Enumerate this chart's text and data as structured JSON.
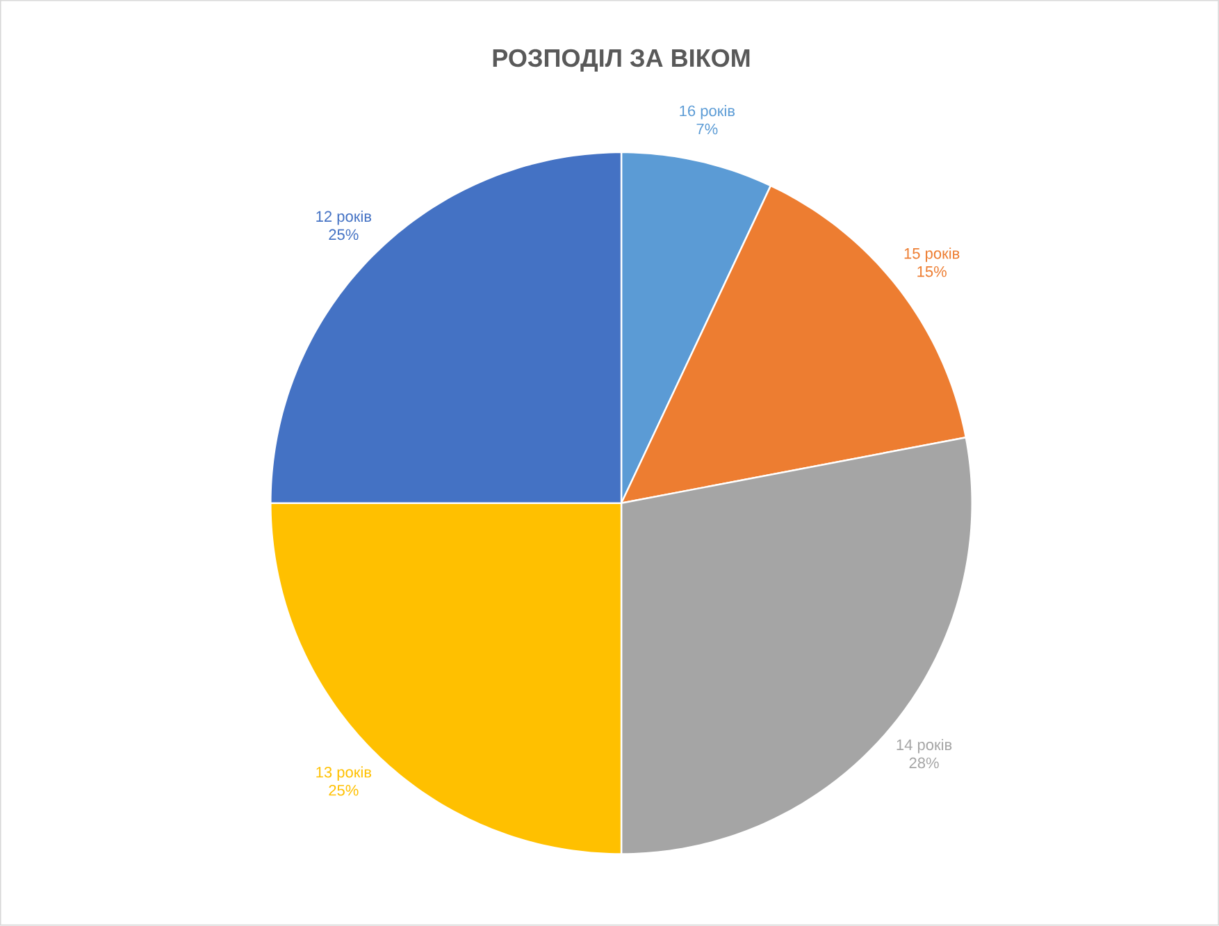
{
  "chart_data": {
    "type": "pie",
    "title": "РОЗПОДІЛ ЗА ВІКОМ",
    "categories": [
      "16 років",
      "15 років",
      "14 років",
      "13 років",
      "12 років"
    ],
    "values": [
      7,
      15,
      28,
      25,
      25
    ],
    "value_labels": [
      "7%",
      "15%",
      "28%",
      "25%",
      "25%"
    ],
    "colors": [
      "#5b9bd5",
      "#ed7d31",
      "#a5a5a5",
      "#ffc000",
      "#4472c4"
    ]
  }
}
